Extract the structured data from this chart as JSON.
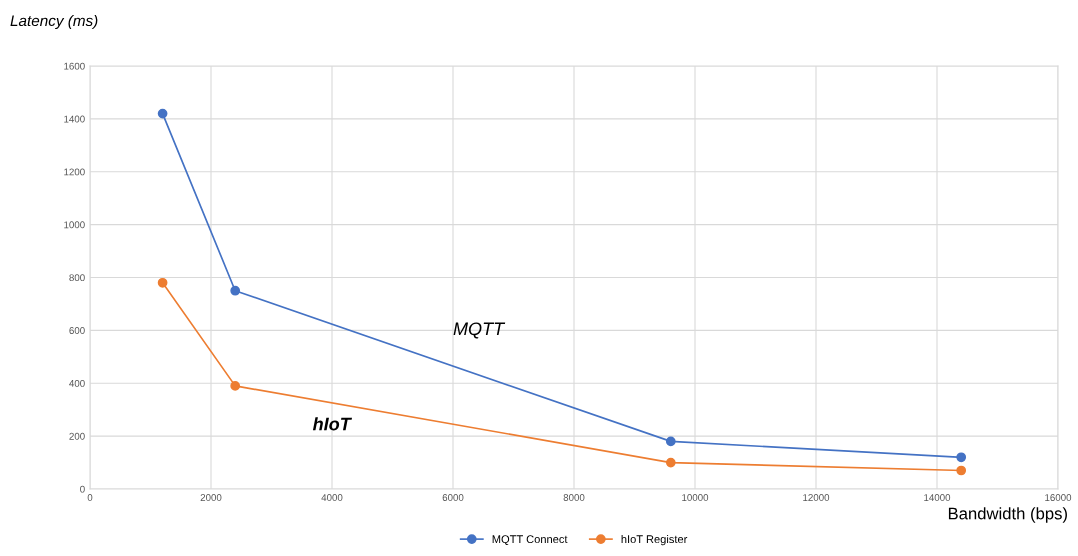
{
  "chart_data": {
    "type": "line",
    "xlabel": "Bandwidth (bps)",
    "ylabel": "Latency (ms)",
    "x": [
      1200,
      2400,
      9600,
      14400
    ],
    "series": [
      {
        "name": "MQTT Connect",
        "color": "#4472c4",
        "values": [
          1420,
          750,
          180,
          120
        ]
      },
      {
        "name": "hIoT Register",
        "color": "#ed7d31",
        "values": [
          780,
          390,
          100,
          70
        ]
      }
    ],
    "xlim": [
      0,
      16000
    ],
    "xticks": [
      0,
      2000,
      4000,
      6000,
      8000,
      10000,
      12000,
      14000,
      16000
    ],
    "ylim": [
      0,
      1600
    ],
    "yticks": [
      0,
      200,
      400,
      600,
      800,
      1000,
      1200,
      1400,
      1600
    ],
    "grid": true,
    "legend": "bottom",
    "marker": "circle",
    "line_style": "solid",
    "annotations": [
      "MQTT",
      "hIoT"
    ]
  }
}
